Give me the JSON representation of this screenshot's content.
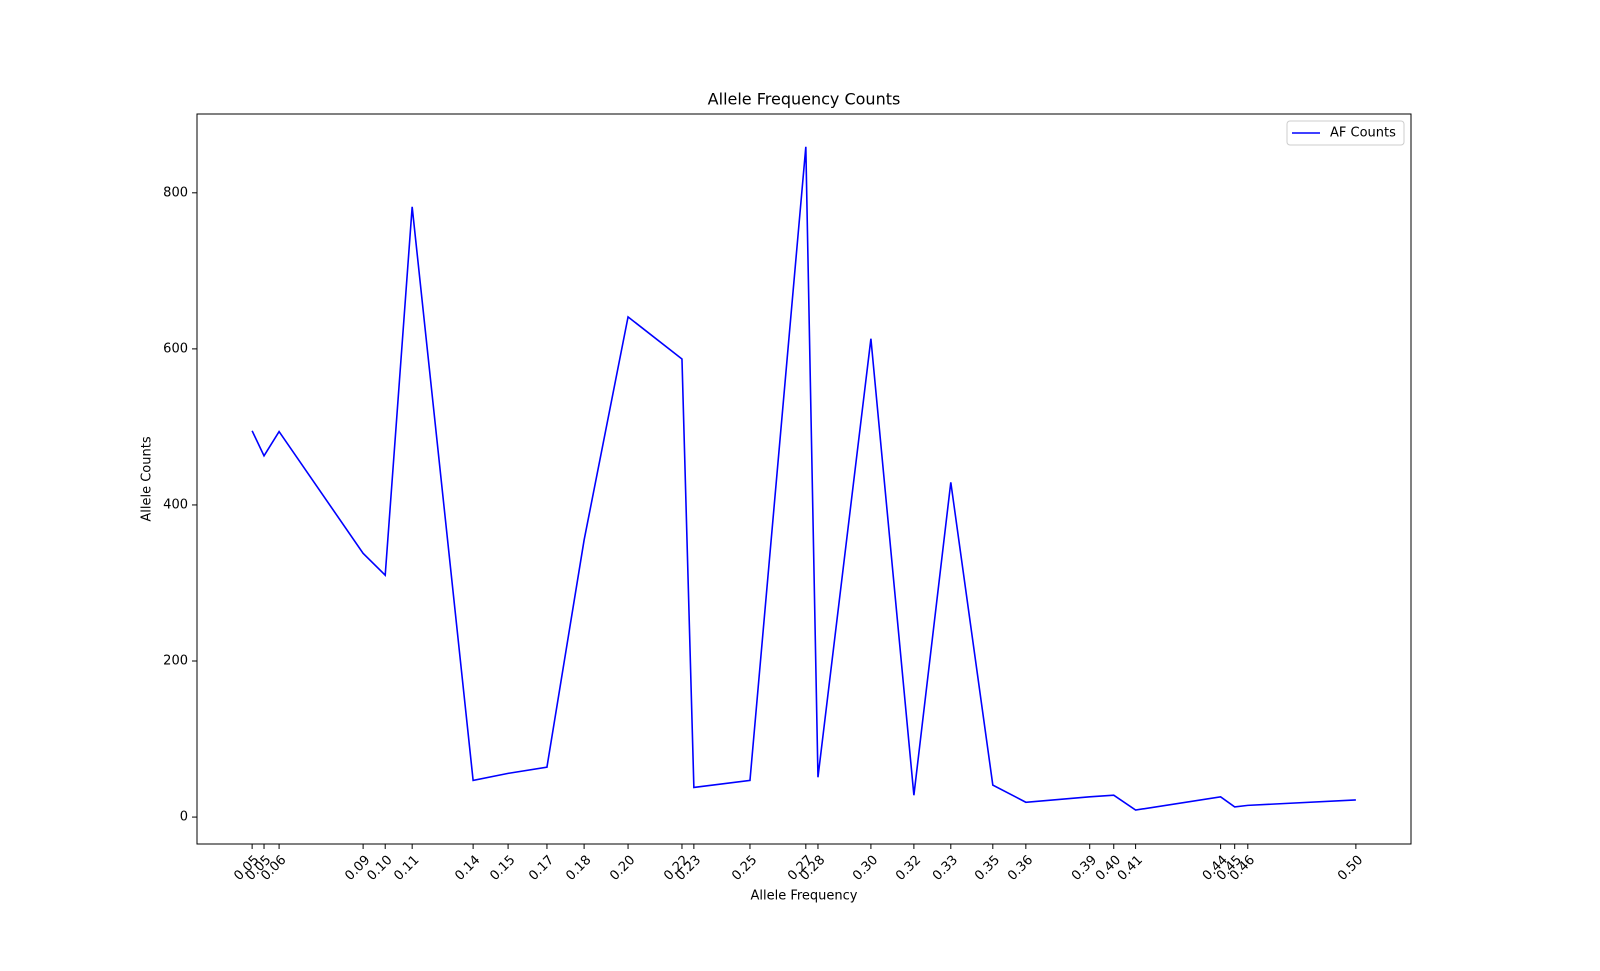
{
  "chart_data": {
    "type": "line",
    "title": "Allele Frequency Counts",
    "x_label": "Allele Frequency",
    "y_label": "Allele Counts",
    "x": [
      0.0455,
      0.0504,
      0.0566,
      0.0912,
      0.1003,
      0.1114,
      0.1365,
      0.1509,
      0.1669,
      0.1822,
      0.2003,
      0.2225,
      0.2274,
      0.2505,
      0.2735,
      0.2785,
      0.3003,
      0.318,
      0.3332,
      0.3505,
      0.3641,
      0.3904,
      0.4003,
      0.4093,
      0.4443,
      0.4501,
      0.4555,
      0.5
    ],
    "series": [
      {
        "name": "AF Counts",
        "color": "#0000ff",
        "values": [
          495,
          463,
          494,
          338,
          310,
          782,
          47,
          56,
          64,
          355,
          641,
          587,
          38,
          47,
          859,
          51,
          613,
          28,
          429,
          41,
          19,
          26,
          28,
          9,
          26,
          13,
          15,
          22
        ]
      }
    ],
    "xlim": [
      0.0228,
      0.5227
    ],
    "ylim": [
      -34.5,
      901
    ],
    "xticks": [
      {
        "value": 0.0455,
        "label": "0.05"
      },
      {
        "value": 0.0504,
        "label": "0.05"
      },
      {
        "value": 0.0566,
        "label": "0.06"
      },
      {
        "value": 0.0912,
        "label": "0.09"
      },
      {
        "value": 0.1003,
        "label": "0.10"
      },
      {
        "value": 0.1114,
        "label": "0.11"
      },
      {
        "value": 0.1365,
        "label": "0.14"
      },
      {
        "value": 0.1509,
        "label": "0.15"
      },
      {
        "value": 0.1669,
        "label": "0.17"
      },
      {
        "value": 0.1822,
        "label": "0.18"
      },
      {
        "value": 0.2003,
        "label": "0.20"
      },
      {
        "value": 0.2225,
        "label": "0.22"
      },
      {
        "value": 0.2274,
        "label": "0.23"
      },
      {
        "value": 0.2505,
        "label": "0.25"
      },
      {
        "value": 0.2735,
        "label": "0.27"
      },
      {
        "value": 0.2785,
        "label": "0.28"
      },
      {
        "value": 0.3003,
        "label": "0.30"
      },
      {
        "value": 0.318,
        "label": "0.32"
      },
      {
        "value": 0.3332,
        "label": "0.33"
      },
      {
        "value": 0.3505,
        "label": "0.35"
      },
      {
        "value": 0.3641,
        "label": "0.36"
      },
      {
        "value": 0.3904,
        "label": "0.39"
      },
      {
        "value": 0.4003,
        "label": "0.40"
      },
      {
        "value": 0.4093,
        "label": "0.41"
      },
      {
        "value": 0.4443,
        "label": "0.44"
      },
      {
        "value": 0.4501,
        "label": "0.45"
      },
      {
        "value": 0.4555,
        "label": "0.46"
      },
      {
        "value": 0.5,
        "label": "0.50"
      }
    ],
    "yticks": [
      0,
      200,
      400,
      600,
      800
    ],
    "legend": "upper right",
    "grid": false
  }
}
